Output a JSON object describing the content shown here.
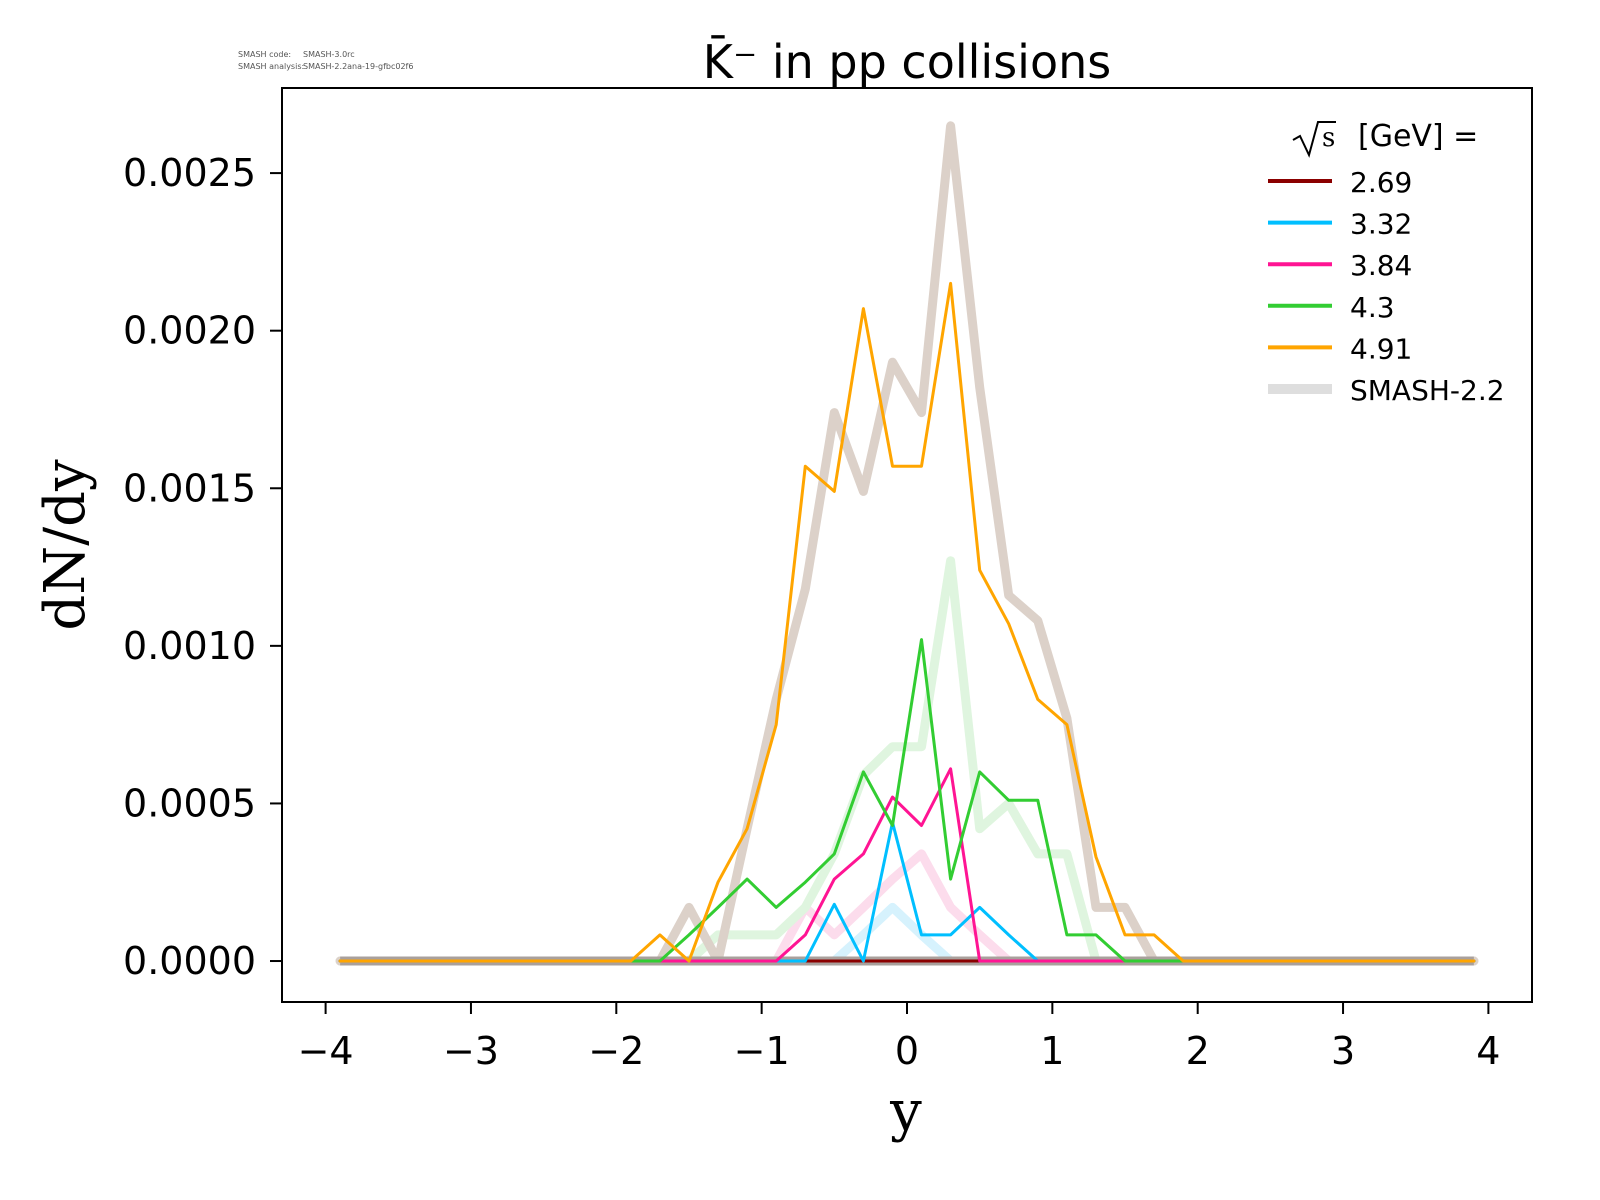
{
  "meta": {
    "code_label": "SMASH code:",
    "code_value": "SMASH-3.0rc",
    "analysis_label": "SMASH analysis:",
    "analysis_value": "SMASH-2.2ana-19-gfbc02f6"
  },
  "chart_data": {
    "type": "line",
    "title": "K̄⁻ in pp collisions",
    "xlabel": "y",
    "ylabel": "dN/dy",
    "xlim": [
      -4.3,
      4.3
    ],
    "ylim": [
      -0.00013,
      0.00277
    ],
    "xticks": [
      -4,
      -3,
      -2,
      -1,
      0,
      1,
      2,
      3,
      4
    ],
    "xtick_labels": [
      "−4",
      "−3",
      "−2",
      "−1",
      "0",
      "1",
      "2",
      "3",
      "4"
    ],
    "yticks": [
      0,
      0.0005,
      0.001,
      0.0015,
      0.002,
      0.0025
    ],
    "ytick_labels": [
      "0.0000",
      "0.0005",
      "0.0010",
      "0.0015",
      "0.0020",
      "0.0025"
    ],
    "grid": false,
    "legend": {
      "placement": "top-right",
      "title_prefix": "s",
      "title_suffix": "[GeV] =",
      "entries": [
        {
          "label": "2.69",
          "color": "#8b0000"
        },
        {
          "label": "3.32",
          "color": "#00bfff"
        },
        {
          "label": "3.84",
          "color": "#ff1493"
        },
        {
          "label": "4.3",
          "color": "#32cd32"
        },
        {
          "label": "4.91",
          "color": "#ffa500"
        },
        {
          "label": "SMASH-2.2",
          "color": "#dedede"
        }
      ]
    },
    "x": [
      -3.9,
      -1.9,
      -1.7,
      -1.5,
      -1.3,
      -1.1,
      -0.9,
      -0.7,
      -0.5,
      -0.3,
      -0.1,
      0.1,
      0.3,
      0.5,
      0.7,
      0.9,
      1.1,
      1.3,
      1.5,
      1.7,
      1.9,
      3.9
    ],
    "reference_series": [
      {
        "name": "SMASH-2.2 2.69",
        "color": "#b8a8a8",
        "values": [
          0,
          0,
          0,
          0,
          0,
          0,
          0,
          0,
          0,
          0,
          0,
          0,
          0,
          0,
          0,
          0,
          0,
          0,
          0,
          0,
          0,
          0
        ]
      },
      {
        "name": "SMASH-2.2 3.32",
        "color": "#d6f2fd",
        "values": [
          0,
          0,
          0,
          0,
          0,
          0,
          0,
          0,
          0,
          8.3e-05,
          0.00017,
          8.3e-05,
          0,
          0,
          0,
          0,
          0,
          0,
          0,
          0,
          0,
          0
        ]
      },
      {
        "name": "SMASH-2.2 3.84",
        "color": "#fcdcec",
        "values": [
          0,
          0,
          0,
          0,
          0,
          0,
          0,
          0.00017,
          8.3e-05,
          0.00017,
          0.00026,
          0.00034,
          0.00017,
          8.3e-05,
          0,
          0,
          0,
          0,
          0,
          0,
          0,
          0
        ]
      },
      {
        "name": "SMASH-2.2 4.3",
        "color": "#dff5df",
        "values": [
          0,
          0,
          0,
          0,
          8.3e-05,
          8.3e-05,
          8.3e-05,
          0.00017,
          0.00034,
          0.00059,
          0.00068,
          0.00068,
          0.00127,
          0.00042,
          0.0005,
          0.00034,
          0.00034,
          0,
          0,
          0,
          0,
          0
        ]
      },
      {
        "name": "SMASH-2.2 4.91",
        "color": "#dcd1c9",
        "values": [
          0,
          0,
          0,
          0.00017,
          0,
          0.00042,
          0.00083,
          0.00118,
          0.00174,
          0.00149,
          0.0019,
          0.00174,
          0.00265,
          0.00182,
          0.00116,
          0.00108,
          0.00077,
          0.00017,
          0.00017,
          0,
          0,
          0
        ]
      }
    ],
    "series": [
      {
        "name": "2.69",
        "color": "#8b0000",
        "values": [
          0,
          0,
          0,
          0,
          0,
          0,
          0,
          0,
          0,
          0,
          0,
          0,
          0,
          0,
          0,
          0,
          0,
          0,
          0,
          0,
          0,
          0
        ]
      },
      {
        "name": "3.32",
        "color": "#00bfff",
        "values": [
          0,
          0,
          0,
          0,
          0,
          0,
          0,
          0,
          0.00018,
          0,
          0.00044,
          8.3e-05,
          8.3e-05,
          0.00017,
          8.3e-05,
          0,
          0,
          0,
          0,
          0,
          0,
          0
        ]
      },
      {
        "name": "3.84",
        "color": "#ff1493",
        "values": [
          0,
          0,
          0,
          0,
          0,
          0,
          0,
          8.3e-05,
          0.00026,
          0.00034,
          0.00052,
          0.00043,
          0.00061,
          0,
          0,
          0,
          0,
          0,
          0,
          0,
          0,
          0
        ]
      },
      {
        "name": "4.3",
        "color": "#32cd32",
        "values": [
          0,
          0,
          0,
          8.3e-05,
          0.00017,
          0.00026,
          0.00017,
          0.00025,
          0.00034,
          0.0006,
          0.00043,
          0.00102,
          0.00026,
          0.0006,
          0.00051,
          0.00051,
          8.3e-05,
          8.3e-05,
          0,
          0,
          0,
          0
        ]
      },
      {
        "name": "4.91",
        "color": "#ffa500",
        "values": [
          0,
          0,
          8.3e-05,
          0,
          0.00025,
          0.00042,
          0.00075,
          0.00157,
          0.00149,
          0.00207,
          0.00157,
          0.00157,
          0.00215,
          0.00124,
          0.00107,
          0.00083,
          0.00075,
          0.00033,
          8.3e-05,
          8.3e-05,
          0,
          0
        ]
      }
    ]
  }
}
